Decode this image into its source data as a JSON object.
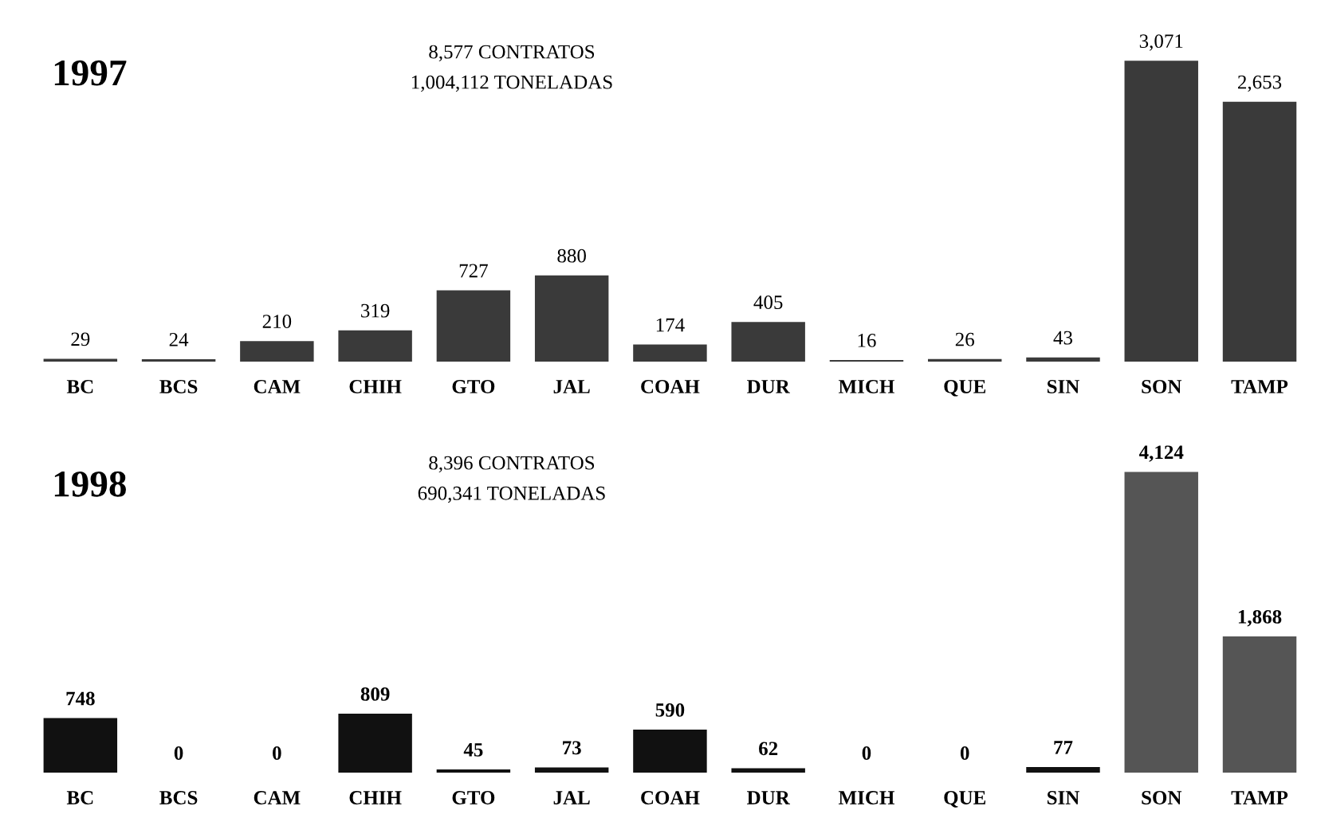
{
  "chart_data": [
    {
      "type": "bar",
      "title": "1997",
      "categories": [
        "BC",
        "BCS",
        "CAM",
        "CHIH",
        "GTO",
        "JAL",
        "COAH",
        "DUR",
        "MICH",
        "QUE",
        "SIN",
        "SON",
        "TAMP"
      ],
      "values": [
        29,
        24,
        210,
        319,
        727,
        880,
        174,
        405,
        16,
        26,
        43,
        3071,
        2653
      ],
      "value_labels": [
        "29",
        "24",
        "210",
        "319",
        "727",
        "880",
        "174",
        "405",
        "16",
        "26",
        "43",
        "3,071",
        "2,653"
      ],
      "colors": [
        "#3a3a3a",
        "#3a3a3a",
        "#3a3a3a",
        "#3a3a3a",
        "#3a3a3a",
        "#3a3a3a",
        "#3a3a3a",
        "#3a3a3a",
        "#3a3a3a",
        "#3a3a3a",
        "#3a3a3a",
        "#3a3a3a",
        "#3a3a3a"
      ],
      "annotations": [
        "8,577 CONTRATOS",
        "1,004,112 TONELADAS"
      ],
      "tick_labels": "x",
      "grid": false,
      "legend": false
    },
    {
      "type": "bar",
      "title": "1998",
      "categories": [
        "BC",
        "BCS",
        "CAM",
        "CHIH",
        "GTO",
        "JAL",
        "COAH",
        "DUR",
        "MICH",
        "QUE",
        "SIN",
        "SON",
        "TAMP"
      ],
      "values": [
        748,
        0,
        0,
        809,
        45,
        73,
        590,
        62,
        0,
        0,
        77,
        4124,
        1868
      ],
      "value_labels": [
        "748",
        "0",
        "0",
        "809",
        "45",
        "73",
        "590",
        "62",
        "0",
        "0",
        "77",
        "4,124",
        "1,868"
      ],
      "colors": [
        "#111111",
        "#111111",
        "#111111",
        "#111111",
        "#111111",
        "#111111",
        "#111111",
        "#111111",
        "#111111",
        "#111111",
        "#111111",
        "#555555",
        "#555555"
      ],
      "annotations": [
        "8,396 CONTRATOS",
        "690,341 TONELADAS"
      ],
      "tick_labels": "x",
      "grid": false,
      "legend": false
    }
  ]
}
